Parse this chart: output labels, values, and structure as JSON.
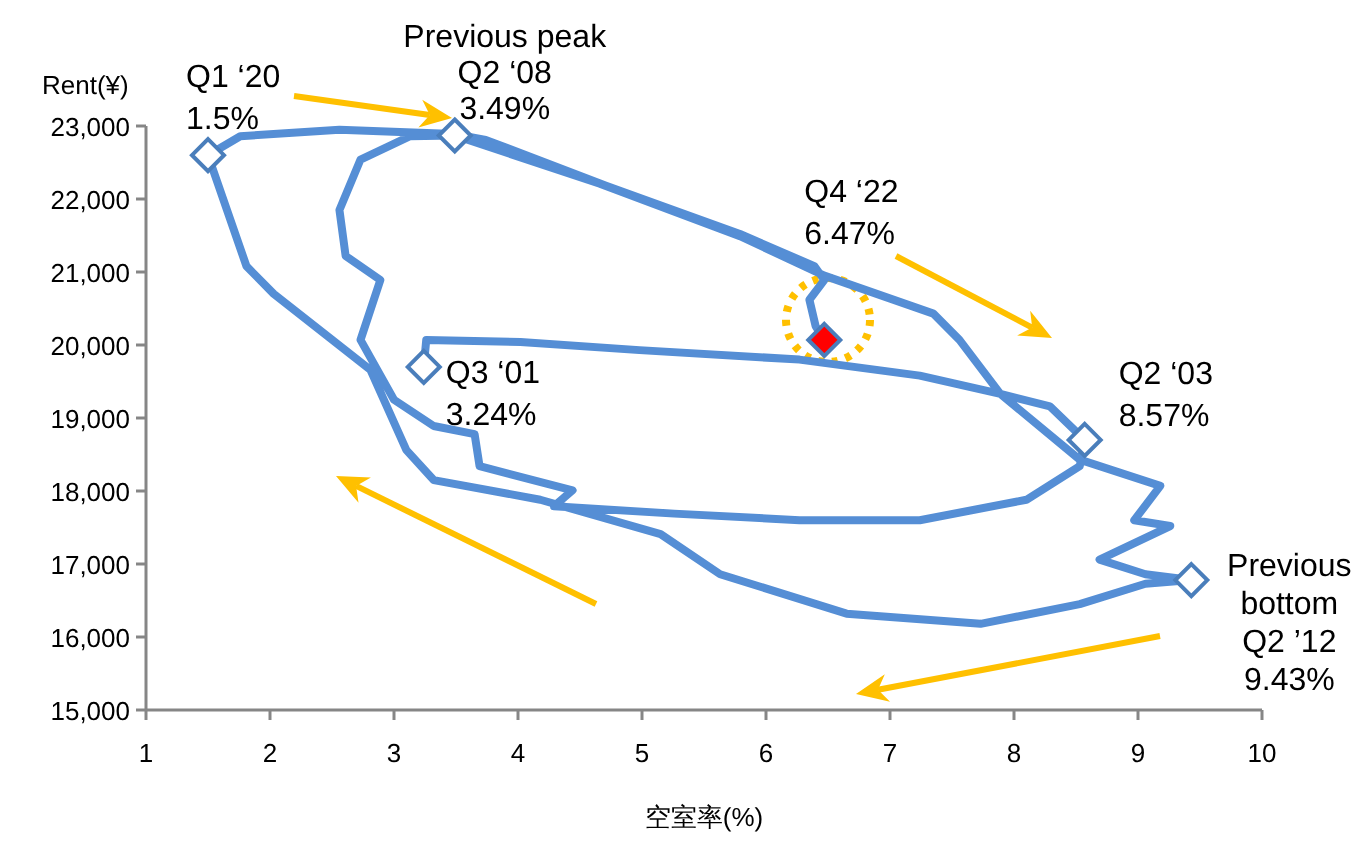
{
  "chart_data": {
    "type": "line",
    "xlabel": "空室率(%)",
    "ylabel": "Rent(¥)",
    "xlim": [
      1,
      10
    ],
    "xticks": [
      1,
      2,
      3,
      4,
      5,
      6,
      7,
      8,
      9,
      10
    ],
    "ylim": [
      15000,
      23000
    ],
    "yticks": [
      {
        "value": 15000,
        "label": "15,000"
      },
      {
        "value": 16000,
        "label": "16,000"
      },
      {
        "value": 17000,
        "label": "17,000"
      },
      {
        "value": 18000,
        "label": "18,000"
      },
      {
        "value": 19000,
        "label": "19,000"
      },
      {
        "value": 20000,
        "label": "20,000"
      },
      {
        "value": 21000,
        "label": "21,000"
      },
      {
        "value": 22000,
        "label": "22,000"
      },
      {
        "value": 23000,
        "label": "23,000"
      }
    ],
    "grid": false,
    "line_style": "solid",
    "series": [
      {
        "color": "#558ed5",
        "marker": "none",
        "x": [
          3.24,
          3.26,
          4.02,
          4.98,
          6.27,
          7.24,
          7.89,
          8.29,
          8.57,
          8.53,
          8.1,
          7.24,
          6.27,
          5.26,
          4.29,
          4.44,
          3.69,
          3.65,
          3.32,
          3.0,
          2.73,
          2.89,
          2.61,
          2.56,
          2.73,
          3.13,
          3.49,
          4.66,
          5.79,
          6.47,
          7.35,
          7.56,
          7.89,
          8.53,
          9.18,
          8.97,
          9.26,
          8.69,
          9.06,
          9.43,
          9.06,
          8.53,
          7.73,
          6.65,
          5.63,
          5.15,
          4.18,
          3.32,
          3.1,
          2.81,
          2.03,
          1.81,
          1.5,
          1.76,
          2.56,
          3.48,
          3.74,
          4.71,
          5.79,
          6.39,
          6.47,
          6.35,
          6.4,
          6.47
        ],
        "values": [
          19700,
          20070,
          20040,
          19930,
          19800,
          19580,
          19330,
          19160,
          18700,
          18340,
          17880,
          17600,
          17600,
          17690,
          17790,
          18010,
          18340,
          18780,
          18890,
          19250,
          20070,
          20890,
          21220,
          21850,
          22540,
          22860,
          22870,
          22210,
          21490,
          20950,
          20430,
          20070,
          19330,
          18430,
          18070,
          17600,
          17520,
          17060,
          16860,
          16780,
          16730,
          16450,
          16180,
          16320,
          16860,
          17410,
          17880,
          18150,
          18560,
          19660,
          20700,
          21080,
          22600,
          22860,
          22950,
          22890,
          22810,
          22180,
          21520,
          21080,
          20890,
          20620,
          20260,
          20070
        ]
      },
      {
        "type": "scatter",
        "color": "#4a7ebb",
        "marker": "diamond",
        "x": [
          3.24,
          8.57,
          3.49,
          9.43,
          1.5,
          6.47
        ],
        "values": [
          19700,
          18700,
          22870,
          16780,
          22600,
          20070
        ],
        "colors": [
          "#ffffff",
          "#ffffff",
          "#ffffff",
          "#ffffff",
          "#ffffff",
          "#ff0000"
        ]
      }
    ],
    "annotations": [
      {
        "text": "Q1 ‘20\n1.5%",
        "x": 1.5,
        "y": 22600
      },
      {
        "text": "Previous peak\nQ2 ‘08\n3.49%",
        "x": 3.49,
        "y": 22870
      },
      {
        "text": "Q4 ‘22\n6.47%",
        "x": 6.47,
        "y": 20070
      },
      {
        "text": "Q3 ‘01\n3.24%",
        "x": 3.24,
        "y": 19700
      },
      {
        "text": "Q2 ‘03\n8.57%",
        "x": 8.57,
        "y": 18700
      },
      {
        "text": "Previous\nbottom\nQ2 ’12\n9.43%",
        "x": 9.43,
        "y": 16780
      }
    ]
  }
}
